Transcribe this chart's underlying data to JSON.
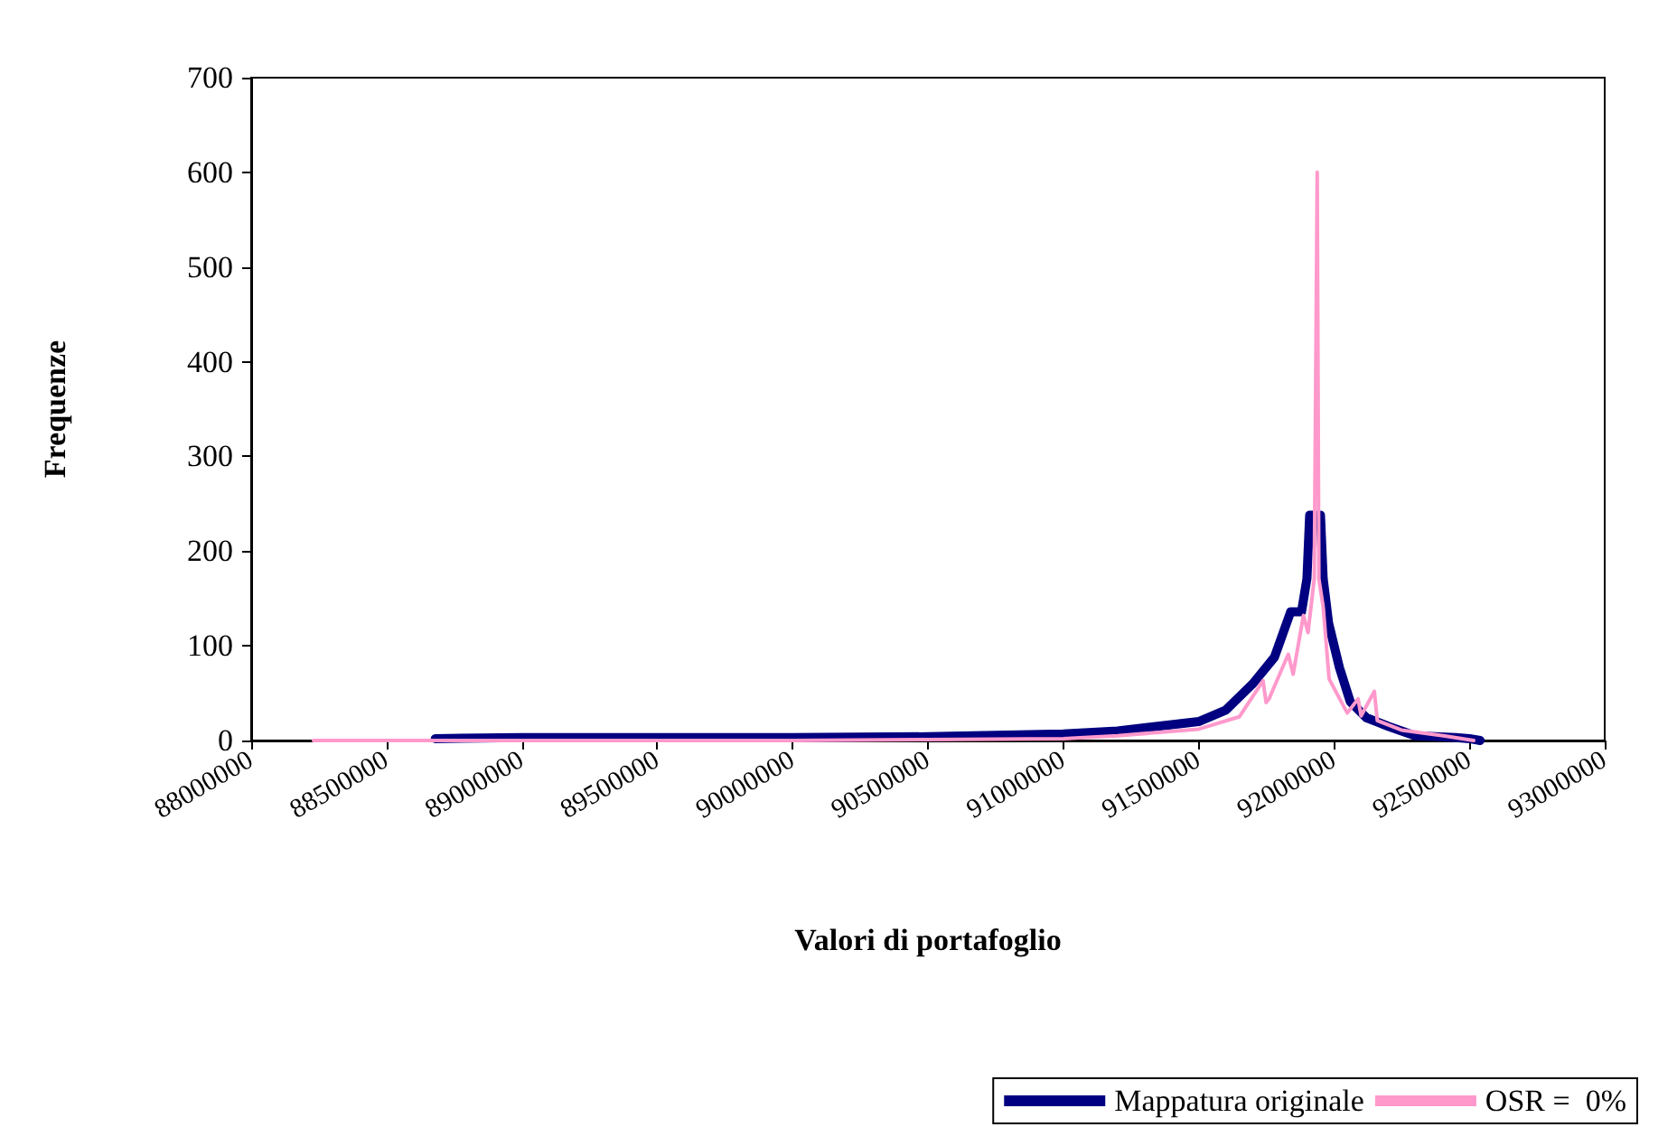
{
  "chart_data": {
    "type": "line",
    "xlabel": "Valori di portafoglio",
    "ylabel": "Frequenze",
    "xlim": [
      88000000,
      93000000
    ],
    "xticks": [
      88000000,
      88500000,
      89000000,
      89500000,
      90000000,
      90500000,
      91000000,
      91500000,
      92000000,
      92500000,
      93000000
    ],
    "ylim": [
      0,
      700
    ],
    "yticks": [
      0,
      100,
      200,
      300,
      400,
      500,
      600,
      700
    ],
    "grid": false,
    "legend": "bottom right",
    "marker": "none",
    "line_style": "solid",
    "series": [
      {
        "name": "Mappatura originale",
        "color": "#000080",
        "x": [
          88680000,
          89000000,
          89500000,
          90000000,
          90500000,
          91000000,
          91200000,
          91500000,
          91600000,
          91700000,
          91780000,
          91840000,
          91880000,
          91900000,
          91910000,
          91950000,
          91960000,
          91980000,
          92020000,
          92060000,
          92120000,
          92200000,
          92300000,
          92450000,
          92500000,
          92540000
        ],
        "values": [
          2,
          3,
          3,
          3,
          4,
          7,
          10,
          20,
          32,
          60,
          88,
          136,
          136,
          171,
          238,
          238,
          171,
          124,
          77,
          41,
          24,
          15,
          5,
          3,
          2,
          0
        ]
      },
      {
        "name": "OSR =  0%",
        "color": "#ff99cc",
        "x": [
          88230000,
          89000000,
          90000000,
          90500000,
          91000000,
          91200000,
          91500000,
          91650000,
          91738000,
          91749000,
          91760000,
          91831000,
          91849000,
          91887000,
          91904000,
          91927000,
          91938000,
          91944000,
          91960000,
          91982000,
          92049000,
          92089000,
          92100000,
          92149000,
          92160000,
          92249000,
          92404000,
          92516000
        ],
        "values": [
          0,
          0,
          0,
          1,
          2,
          5,
          12,
          25,
          63,
          40,
          44,
          91,
          70,
          132,
          114,
          171,
          600,
          171,
          141,
          65,
          29,
          44,
          26,
          52,
          21,
          11,
          5,
          0
        ]
      }
    ]
  }
}
